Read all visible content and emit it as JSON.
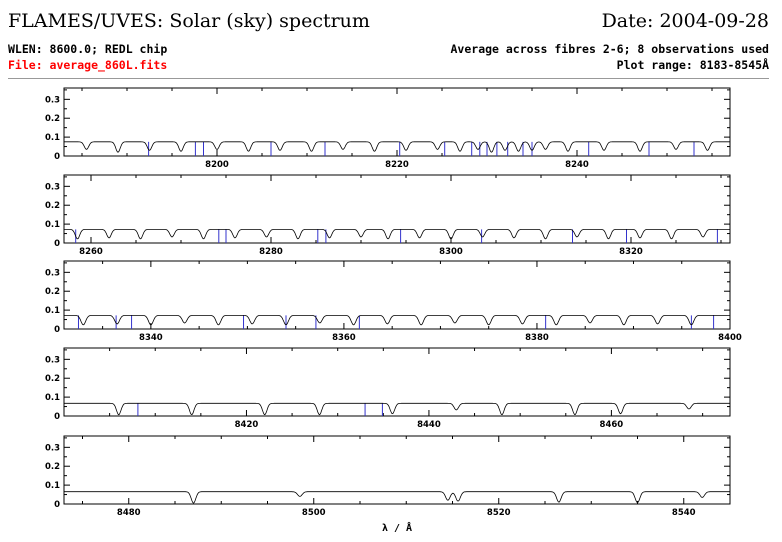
{
  "header": {
    "title": "FLAMES/UVES: Solar (sky) spectrum",
    "date": "Date: 2004-09-28",
    "wlen": "WLEN: 8600.0; REDL chip",
    "file": "File: average_860L.fits",
    "average": "Average across fibres 2-6; 8 observations used",
    "range": "Plot range: 8183-8545Å"
  },
  "colors": {
    "spectrum": "#000000",
    "lines": "#3333cc",
    "file": "#ff0000"
  },
  "chart_data": {
    "type": "line",
    "xlabel": "λ / Å",
    "ylabel": "",
    "ytick_labels": [
      "0",
      "0.1",
      "0.2",
      "0.3"
    ],
    "ylim": [
      0,
      0.36
    ],
    "panels": [
      {
        "xlim": [
          8183,
          8257
        ],
        "ticks": [
          8200,
          8220,
          8240
        ],
        "continuum": 0.075,
        "absorption": [
          [
            8185.5,
            0.04
          ],
          [
            8189,
            0.055
          ],
          [
            8192.5,
            0.045
          ],
          [
            8196,
            0.05
          ],
          [
            8200,
            0.04
          ],
          [
            8203.5,
            0.05
          ],
          [
            8207,
            0.045
          ],
          [
            8210.5,
            0.05
          ],
          [
            8214,
            0.04
          ],
          [
            8217.5,
            0.05
          ],
          [
            8221,
            0.045
          ],
          [
            8224.5,
            0.04
          ],
          [
            8227,
            0.05
          ],
          [
            8229,
            0.04
          ],
          [
            8230.5,
            0.055
          ],
          [
            8232,
            0.045
          ],
          [
            8233.5,
            0.05
          ],
          [
            8235,
            0.045
          ],
          [
            8236.5,
            0.04
          ],
          [
            8239,
            0.05
          ],
          [
            8243,
            0.045
          ],
          [
            8247,
            0.05
          ],
          [
            8251,
            0.04
          ],
          [
            8254.5,
            0.045
          ]
        ],
        "marked": [
          8192.4,
          8197.6,
          8198.5,
          8206,
          8212,
          8220.3,
          8225.3,
          8228.3,
          8229.2,
          8230,
          8231.1,
          8232.3,
          8234,
          8235,
          8241.3,
          8248,
          8253
        ]
      },
      {
        "xlim": [
          8257,
          8331
        ],
        "ticks": [
          8260,
          8280,
          8300,
          8320
        ],
        "continuum": 0.072,
        "absorption": [
          [
            8258.5,
            0.05
          ],
          [
            8262,
            0.045
          ],
          [
            8265.5,
            0.05
          ],
          [
            8269,
            0.04
          ],
          [
            8272.5,
            0.05
          ],
          [
            8276,
            0.045
          ],
          [
            8279.5,
            0.04
          ],
          [
            8283,
            0.05
          ],
          [
            8286.5,
            0.045
          ],
          [
            8290,
            0.04
          ],
          [
            8293,
            0.05
          ],
          [
            8296.5,
            0.045
          ],
          [
            8300,
            0.05
          ],
          [
            8303.5,
            0.04
          ],
          [
            8307,
            0.045
          ],
          [
            8310.5,
            0.05
          ],
          [
            8314,
            0.04
          ],
          [
            8317.5,
            0.05
          ],
          [
            8321,
            0.045
          ],
          [
            8324.5,
            0.05
          ],
          [
            8328,
            0.04
          ]
        ],
        "marked": [
          8258.3,
          8274.2,
          8275,
          8285.2,
          8286.1,
          8294.4,
          8303.4,
          8313.5,
          8319.5,
          8329.6
        ]
      },
      {
        "xlim": [
          8331,
          8400
        ],
        "ticks": [
          8340,
          8360,
          8380,
          8400
        ],
        "continuum": 0.072,
        "absorption": [
          [
            8333,
            0.05
          ],
          [
            8336.5,
            0.045
          ],
          [
            8340,
            0.05
          ],
          [
            8343.5,
            0.04
          ],
          [
            8347,
            0.05
          ],
          [
            8350.5,
            0.045
          ],
          [
            8354,
            0.05
          ],
          [
            8357.5,
            0.04
          ],
          [
            8361,
            0.05
          ],
          [
            8364.5,
            0.045
          ],
          [
            8368,
            0.05
          ],
          [
            8371.5,
            0.04
          ],
          [
            8375,
            0.05
          ],
          [
            8378.5,
            0.045
          ],
          [
            8382,
            0.05
          ],
          [
            8385.5,
            0.04
          ],
          [
            8389,
            0.05
          ],
          [
            8392.5,
            0.045
          ],
          [
            8396,
            0.05
          ]
        ],
        "marked": [
          8332.5,
          8336.4,
          8338,
          8349.6,
          8354,
          8357.1,
          8361.6,
          8380.9,
          8396,
          8398.3
        ]
      },
      {
        "xlim": [
          8400,
          8473
        ],
        "ticks": [
          8420,
          8440,
          8460
        ],
        "continuum": 0.067,
        "absorption": [
          [
            8406,
            0.06
          ],
          [
            8414,
            0.06
          ],
          [
            8422,
            0.06
          ],
          [
            8428,
            0.06
          ],
          [
            8436,
            0.055
          ],
          [
            8443,
            0.035
          ],
          [
            8448,
            0.06
          ],
          [
            8456,
            0.06
          ],
          [
            8461,
            0.055
          ],
          [
            8468.5,
            0.03
          ]
        ],
        "marked": [
          8408.1,
          8433,
          8434.9
        ]
      },
      {
        "xlim": [
          8473,
          8545
        ],
        "ticks": [
          8480,
          8500,
          8520,
          8540
        ],
        "continuum": 0.065,
        "absorption": [
          [
            8487,
            0.06
          ],
          [
            8498.5,
            0.025
          ],
          [
            8514.5,
            0.045
          ],
          [
            8515.6,
            0.05
          ],
          [
            8526.5,
            0.055
          ],
          [
            8535,
            0.058
          ],
          [
            8542,
            0.03
          ]
        ],
        "marked": []
      }
    ]
  }
}
